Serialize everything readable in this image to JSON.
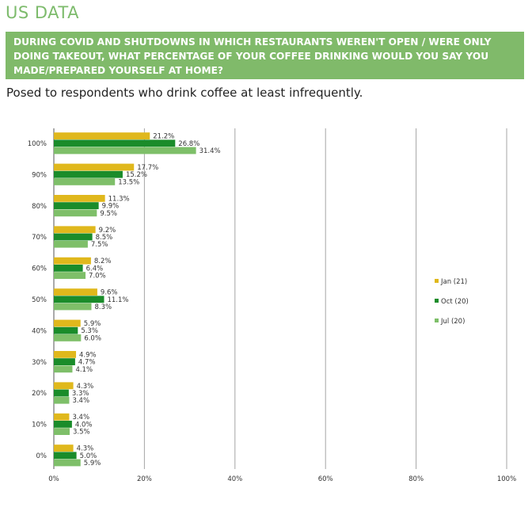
{
  "page_title": "US DATA",
  "question": "DURING COVID AND SHUTDOWNS IN WHICH RESTAURANTS WEREN'T OPEN / WERE ONLY DOING TAKEOUT, WHAT PERCENTAGE OF YOUR COFFEE DRINKING WOULD YOU SAY YOU MADE/PREPARED YOURSELF AT HOME?",
  "subtitle": "Posed to respondents who drink coffee at least infrequently.",
  "colors": {
    "title": "#7dbb6c",
    "question_bg": "#80ba6a",
    "gridline": "#a6a6a6"
  },
  "chart_data": {
    "type": "bar",
    "orientation": "horizontal",
    "categories": [
      "100%",
      "90%",
      "80%",
      "70%",
      "60%",
      "50%",
      "40%",
      "30%",
      "20%",
      "10%",
      "0%"
    ],
    "series": [
      {
        "name": "Jan (21)",
        "color": "#e0b81c",
        "values": [
          21.2,
          17.7,
          11.3,
          9.2,
          8.2,
          9.6,
          5.9,
          4.9,
          4.3,
          3.4,
          4.3
        ],
        "labels": [
          "21.2%",
          "17.7%",
          "11.3%",
          "9.2%",
          "8.2%",
          "9.6%",
          "5.9%",
          "4.9%",
          "4.3%",
          "3.4%",
          "4.3%"
        ]
      },
      {
        "name": "Oct (20)",
        "color": "#1a8c2a",
        "values": [
          26.8,
          15.2,
          9.9,
          8.5,
          6.4,
          11.1,
          5.3,
          4.7,
          3.3,
          4.0,
          5.0
        ],
        "labels": [
          "26.8%",
          "15.2%",
          "9.9%",
          "8.5%",
          "6.4%",
          "11.1%",
          "5.3%",
          "4.7%",
          "3.3%",
          "4.0%",
          "5.0%"
        ]
      },
      {
        "name": "Jul (20)",
        "color": "#7ebf69",
        "values": [
          31.4,
          13.5,
          9.5,
          7.5,
          7.0,
          8.3,
          6.0,
          4.1,
          3.4,
          3.5,
          5.9
        ],
        "labels": [
          "31.4%",
          "13.5%",
          "9.5%",
          "7.5%",
          "7.0%",
          "8.3%",
          "6.0%",
          "4.1%",
          "3.4%",
          "3.5%",
          "5.9%"
        ]
      }
    ],
    "x_ticks": [
      "0%",
      "20%",
      "40%",
      "60%",
      "80%",
      "100%"
    ],
    "xlim": [
      0,
      100
    ],
    "grid": true,
    "legend_position": "right"
  }
}
